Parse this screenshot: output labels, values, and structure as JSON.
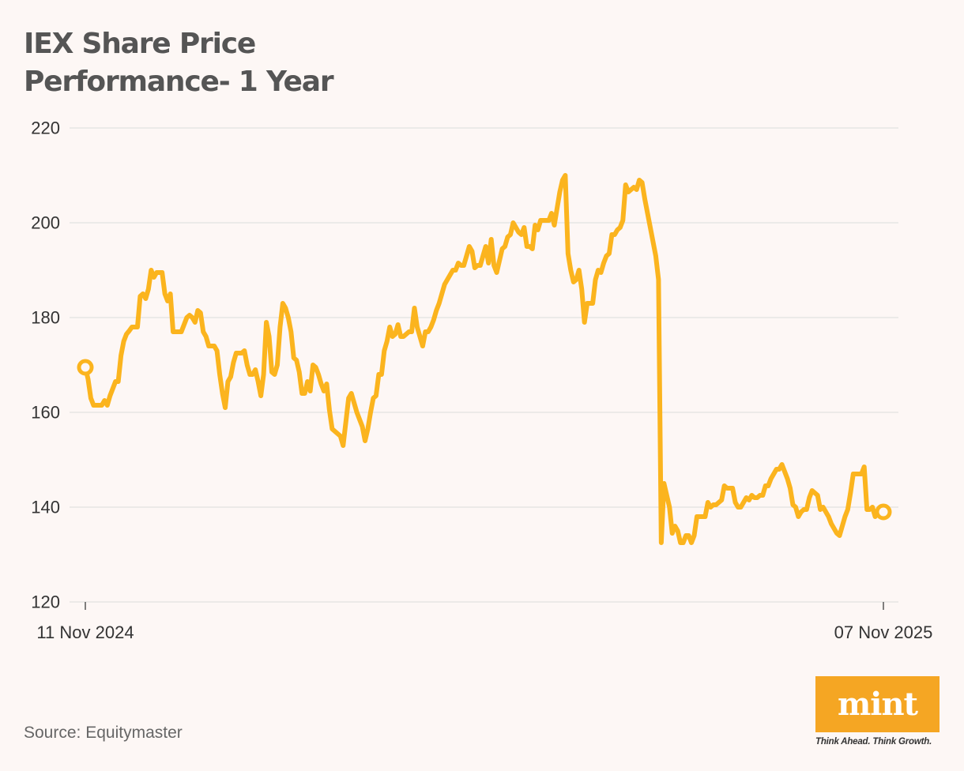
{
  "header": {
    "title_line1": "IEX Share Price",
    "title_line2": "Performance- 1 Year"
  },
  "footer": {
    "source": "Source: Equitymaster",
    "logo": "mint",
    "tagline": "Think Ahead. Think Growth."
  },
  "colors": {
    "line": "#fbb41e",
    "grid": "#dcdcdc",
    "axis_text": "#333333",
    "logo_bg": "#f5a623"
  },
  "chart_data": {
    "type": "line",
    "title": "IEX Share Price Performance- 1 Year",
    "xlabel": "",
    "ylabel": "",
    "ylim": [
      120,
      220
    ],
    "yticks": [
      120,
      140,
      160,
      180,
      200,
      220
    ],
    "x_tick_labels": [
      "11 Nov 2024",
      "07 Nov 2025"
    ],
    "grid": true,
    "endpoint_markers": true,
    "series": [
      {
        "values": [
          169.5,
          167,
          163,
          161.5,
          161.5,
          161.5,
          161.5,
          162.5,
          161.5,
          163.5,
          165,
          166.5,
          166.5,
          172,
          175,
          176.5,
          177.2,
          178,
          178,
          178,
          184.5,
          185,
          184,
          186,
          190,
          188.5,
          189.5,
          189.5,
          189.5,
          185,
          183.5,
          185,
          177,
          177,
          177,
          177,
          178.5,
          180,
          180.5,
          180,
          179,
          181.5,
          181,
          177,
          176,
          174,
          174,
          174,
          173,
          168,
          164,
          161,
          166.5,
          167.5,
          170.5,
          172.5,
          172.5,
          172.5,
          173,
          170,
          168,
          168,
          169,
          166.5,
          163.5,
          168,
          179,
          176,
          168.5,
          168,
          170,
          178,
          183,
          182,
          180,
          177,
          171.5,
          171,
          168.5,
          164,
          164,
          166.5,
          164.5,
          170,
          169.5,
          168,
          166,
          164.5,
          166,
          160.5,
          156.5,
          156,
          155.5,
          155,
          153,
          158,
          163,
          164,
          162,
          160,
          158.5,
          157,
          154,
          156.5,
          160,
          163,
          163.5,
          168,
          168,
          173,
          175,
          178,
          176,
          176.5,
          178.5,
          176,
          176,
          176.5,
          177,
          177,
          182,
          178,
          176,
          174,
          177,
          177,
          178,
          179.5,
          181.5,
          183,
          185,
          187,
          188,
          189,
          190,
          190,
          191.5,
          191,
          191,
          193,
          195,
          194,
          190.5,
          191,
          191,
          193,
          195,
          191.5,
          196.5,
          191,
          189.5,
          192,
          194.5,
          195,
          197,
          197.5,
          200,
          199,
          198,
          197.5,
          199,
          195,
          195,
          194.5,
          199.5,
          198.5,
          200.5,
          200.5,
          200.5,
          200.5,
          202,
          199.5,
          203,
          206.5,
          209,
          210,
          193.5,
          190,
          187.5,
          188,
          190,
          186,
          179,
          183,
          183,
          183,
          188,
          190,
          189.5,
          191.5,
          193,
          193.5,
          197.5,
          197.5,
          198.5,
          199,
          200.5,
          208,
          206.5,
          207,
          207.5,
          207,
          209,
          208.5,
          205,
          202,
          199,
          196,
          193,
          188,
          132.5,
          145,
          142.5,
          140,
          134.5,
          136,
          135,
          132.5,
          132.5,
          134,
          134,
          132.5,
          134,
          138,
          138,
          138,
          138,
          141,
          140,
          140.5,
          140.5,
          141,
          141.5,
          144.5,
          144,
          144,
          144,
          141,
          140,
          140,
          141,
          142,
          141.5,
          142.5,
          142,
          142,
          142.5,
          142.5,
          144.5,
          144.5,
          146,
          147,
          148,
          148,
          149,
          147.5,
          146,
          144,
          140.5,
          140,
          138,
          139,
          139.5,
          139.5,
          142,
          143.5,
          143,
          142.5,
          139.5,
          140,
          139,
          138,
          136.5,
          135.5,
          134.5,
          134,
          136,
          138,
          139.5,
          143,
          147,
          147,
          147,
          147,
          148.5,
          139.5,
          139.5,
          140,
          138,
          139,
          139,
          139
        ]
      }
    ]
  }
}
